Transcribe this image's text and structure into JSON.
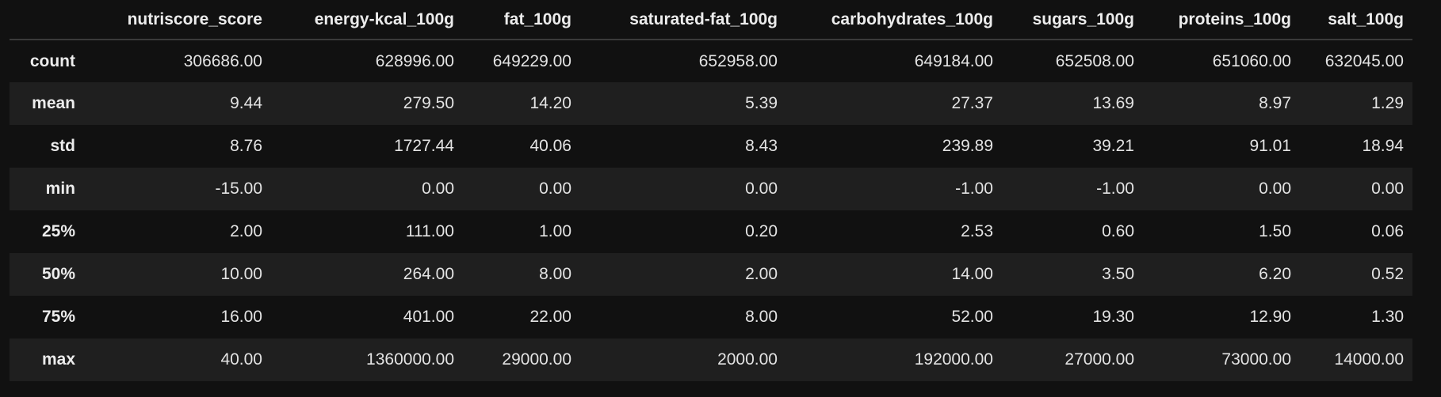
{
  "table": {
    "index_header": "",
    "columns": [
      "nutriscore_score",
      "energy-kcal_100g",
      "fat_100g",
      "saturated-fat_100g",
      "carbohydrates_100g",
      "sugars_100g",
      "proteins_100g",
      "salt_100g"
    ],
    "rows": [
      {
        "label": "count",
        "values": [
          "306686.00",
          "628996.00",
          "649229.00",
          "652958.00",
          "649184.00",
          "652508.00",
          "651060.00",
          "632045.00"
        ]
      },
      {
        "label": "mean",
        "values": [
          "9.44",
          "279.50",
          "14.20",
          "5.39",
          "27.37",
          "13.69",
          "8.97",
          "1.29"
        ]
      },
      {
        "label": "std",
        "values": [
          "8.76",
          "1727.44",
          "40.06",
          "8.43",
          "239.89",
          "39.21",
          "91.01",
          "18.94"
        ]
      },
      {
        "label": "min",
        "values": [
          "-15.00",
          "0.00",
          "0.00",
          "0.00",
          "-1.00",
          "-1.00",
          "0.00",
          "0.00"
        ]
      },
      {
        "label": "25%",
        "values": [
          "2.00",
          "111.00",
          "1.00",
          "0.20",
          "2.53",
          "0.60",
          "1.50",
          "0.06"
        ]
      },
      {
        "label": "50%",
        "values": [
          "10.00",
          "264.00",
          "8.00",
          "2.00",
          "14.00",
          "3.50",
          "6.20",
          "0.52"
        ]
      },
      {
        "label": "75%",
        "values": [
          "16.00",
          "401.00",
          "22.00",
          "8.00",
          "52.00",
          "19.30",
          "12.90",
          "1.30"
        ]
      },
      {
        "label": "max",
        "values": [
          "40.00",
          "1360000.00",
          "29000.00",
          "2000.00",
          "192000.00",
          "27000.00",
          "73000.00",
          "14000.00"
        ]
      }
    ]
  },
  "colors": {
    "background": "#111111",
    "row_stripe": "#1f1f1f",
    "text": "#e6e6e6",
    "header_rule": "#3a3a3a"
  }
}
